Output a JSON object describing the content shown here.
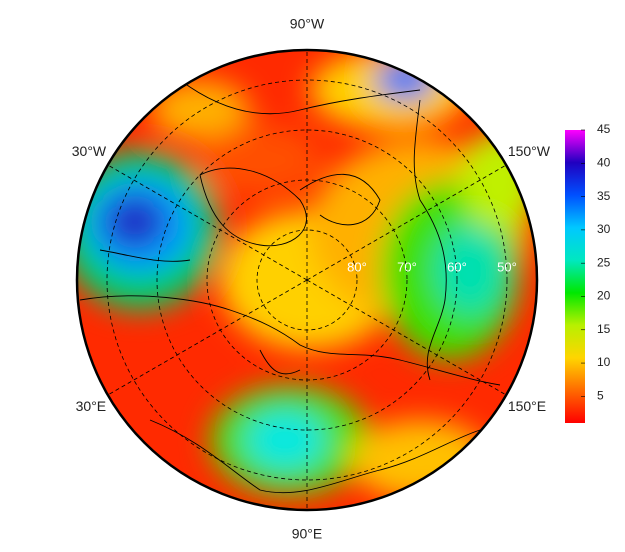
{
  "map": {
    "longitudes": [
      {
        "value": -90,
        "label": "90°W"
      },
      {
        "value": -30,
        "label": "30°W"
      },
      {
        "value": -150,
        "label": "150°W"
      },
      {
        "value": 30,
        "label": "30°E"
      },
      {
        "value": 150,
        "label": "150°E"
      },
      {
        "value": 90,
        "label": "90°E"
      }
    ],
    "latitudes": [
      {
        "value": 80,
        "label": "80°"
      },
      {
        "value": 70,
        "label": "70°"
      },
      {
        "value": 60,
        "label": "60°"
      },
      {
        "value": 50,
        "label": "50°"
      }
    ],
    "colorbar": {
      "range": [
        1,
        45
      ],
      "ticks": [
        5,
        10,
        15,
        20,
        25,
        30,
        35,
        40,
        45
      ],
      "colors": [
        "#ff0000",
        "#ff6a00",
        "#ffd500",
        "#b8f000",
        "#00e800",
        "#00e8c0",
        "#00c8ff",
        "#0050ff",
        "#2000c0",
        "#ff00ff"
      ]
    }
  }
}
